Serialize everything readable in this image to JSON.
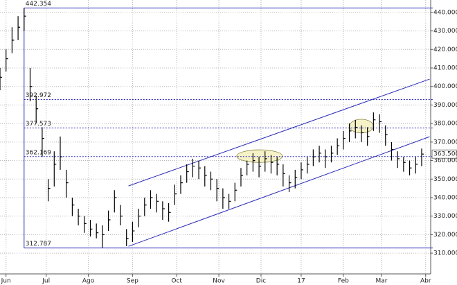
{
  "chart_data": {
    "type": "ohlc",
    "x": [
      0,
      3,
      6,
      9,
      12,
      15,
      18,
      21,
      24,
      27,
      30,
      33,
      36,
      39,
      42,
      45,
      48,
      51,
      54,
      57,
      60,
      63,
      66,
      69,
      72,
      75,
      78,
      81,
      84,
      87,
      90,
      93,
      96,
      99,
      102,
      105,
      108,
      111,
      114,
      117,
      120,
      123,
      126,
      129,
      132,
      135,
      138,
      141,
      144,
      147,
      150,
      153,
      156,
      159,
      162,
      165,
      168,
      171,
      174,
      177,
      180,
      183,
      186,
      189,
      192,
      195,
      198,
      201,
      204,
      207,
      210
    ],
    "high": [
      410,
      420,
      432,
      438,
      442.4,
      410,
      395,
      378,
      350,
      365,
      373,
      355,
      340,
      334,
      330,
      328,
      326,
      325,
      333,
      344,
      336,
      323,
      327,
      334,
      340,
      344,
      342,
      338,
      337,
      347,
      352,
      358,
      361,
      360,
      357,
      354,
      350,
      345,
      342,
      348,
      356,
      360,
      364,
      362,
      365,
      363,
      362,
      358,
      352,
      355,
      359,
      362,
      366,
      368,
      366,
      368,
      372,
      376,
      380,
      382,
      379,
      378,
      386,
      385,
      379,
      370,
      365,
      362,
      360,
      362,
      366.5
    ],
    "low": [
      398,
      408,
      418,
      425,
      430,
      392,
      380,
      362,
      338,
      346,
      355,
      340,
      330,
      325,
      321,
      319,
      318,
      313,
      322,
      332,
      325,
      313.8,
      316,
      324,
      330,
      334,
      332,
      328,
      327,
      336,
      342,
      348,
      351,
      350,
      346,
      344,
      338,
      334,
      334,
      338,
      346,
      352,
      354,
      351,
      354,
      353,
      352,
      346,
      343,
      345,
      350,
      353,
      357,
      359,
      356,
      359,
      363,
      366,
      370,
      372,
      370,
      368,
      376,
      375,
      368,
      360,
      356,
      354,
      352,
      353,
      357
    ],
    "close": [
      405,
      415,
      425,
      432,
      438,
      400,
      388,
      372,
      345,
      358,
      362,
      348,
      336,
      330,
      326,
      323,
      321,
      320,
      328,
      340,
      330,
      318,
      322,
      330,
      336,
      340,
      338,
      334,
      332,
      342,
      348,
      354,
      357,
      356,
      352,
      350,
      345,
      340,
      338,
      344,
      352,
      358,
      360,
      357,
      361,
      359,
      358,
      353,
      348,
      351,
      355,
      358,
      362,
      364,
      362,
      364,
      368,
      372,
      376,
      378,
      375,
      373,
      382,
      381,
      374,
      366,
      361,
      359,
      356,
      358,
      363.5
    ],
    "color": "#000000",
    "xlim": [
      0,
      214.5
    ],
    "ylim": [
      298.8,
      446.7
    ],
    "xticks": [
      {
        "value": 3,
        "label": "Jun"
      },
      {
        "value": 23,
        "label": "Jul"
      },
      {
        "value": 44,
        "label": "Ago"
      },
      {
        "value": 66,
        "label": "Sep"
      },
      {
        "value": 88,
        "label": "Oct"
      },
      {
        "value": 109,
        "label": "Nov"
      },
      {
        "value": 130,
        "label": "Dic"
      },
      {
        "value": 150,
        "label": "17"
      },
      {
        "value": 171,
        "label": "Feb"
      },
      {
        "value": 190,
        "label": "Mar"
      },
      {
        "value": 212,
        "label": "Abr"
      }
    ],
    "yticks": [
      {
        "value": 310,
        "label": "310.000"
      },
      {
        "value": 320,
        "label": "320.000"
      },
      {
        "value": 330,
        "label": "330.000"
      },
      {
        "value": 340,
        "label": "340.000"
      },
      {
        "value": 350,
        "label": "350.000"
      },
      {
        "value": 360,
        "label": "360.000"
      },
      {
        "value": 370,
        "label": "370.000"
      },
      {
        "value": 380,
        "label": "380.000"
      },
      {
        "value": 390,
        "label": "390.000"
      },
      {
        "value": 400,
        "label": "400.000"
      },
      {
        "value": 410,
        "label": "410.000"
      },
      {
        "value": 420,
        "label": "420.000"
      },
      {
        "value": 430,
        "label": "430.000"
      },
      {
        "value": 440,
        "label": "440.000"
      }
    ],
    "grid": true,
    "annotation_color": "#2b2bb8",
    "fib_anchor_x": 12,
    "levels": [
      {
        "value": 442.354,
        "style": "solid"
      },
      {
        "value": 392.972,
        "style": "dashed"
      },
      {
        "value": 377.573,
        "style": "dashed"
      },
      {
        "value": 362.169,
        "style": "dashed"
      },
      {
        "value": 312.787,
        "style": "solid"
      }
    ],
    "trendlines": [
      {
        "x": [
          64,
          214
        ],
        "y": [
          346.3,
          404
        ]
      },
      {
        "x": [
          64,
          214
        ],
        "y": [
          313.7,
          372.9
        ]
      }
    ],
    "ellipses": [
      {
        "x": 129.3,
        "y": 362.4,
        "rx": 11.4,
        "ry": 3.4
      },
      {
        "x": 180,
        "y": 378.6,
        "rx": 5.9,
        "ry": 3.7
      }
    ],
    "ellipse_color": "#f6f2c8",
    "last": {
      "value": 363.5,
      "label": "363.500"
    }
  }
}
